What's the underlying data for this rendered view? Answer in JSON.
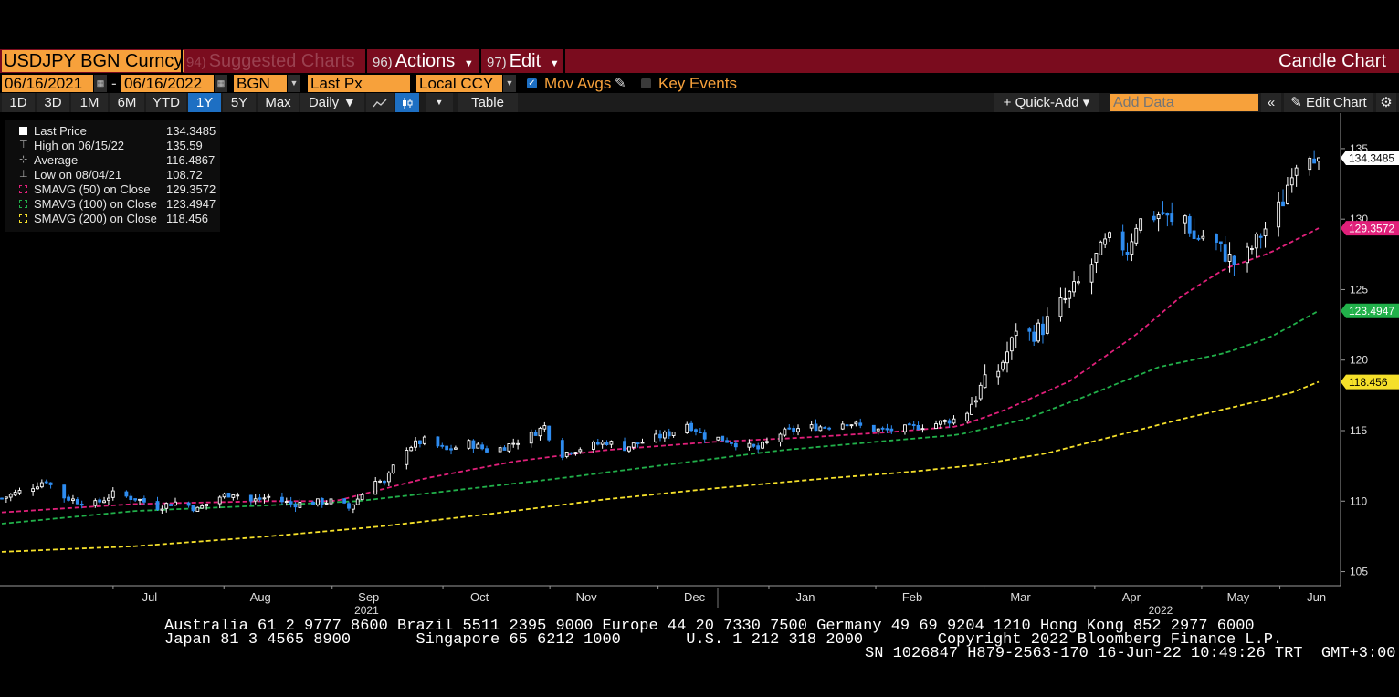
{
  "header": {
    "ticker": "USDJPY BGN Curncy",
    "suggested_num": "94)",
    "suggested": "Suggested Charts",
    "actions_num": "96)",
    "actions": "Actions",
    "edit_num": "97)",
    "edit": "Edit",
    "chart_type": "Candle Chart"
  },
  "controls": {
    "start_date": "06/16/2021",
    "date_sep": "-",
    "end_date": "06/16/2022",
    "source": "BGN",
    "field": "Last Px",
    "currency": "Local CCY",
    "mov_avgs": "Mov Avgs",
    "key_events": "Key Events"
  },
  "toolbar": {
    "ranges": [
      "1D",
      "3D",
      "1M",
      "6M",
      "YTD",
      "1Y",
      "5Y",
      "Max"
    ],
    "active_range": "1Y",
    "frequency": "Daily ▼",
    "table": "Table",
    "quick_add": "+ Quick-Add ▾",
    "add_data_placeholder": "Add Data",
    "edit_chart": "Edit Chart"
  },
  "legend": {
    "rows": [
      {
        "label": "Last Price",
        "value": "134.3485"
      },
      {
        "label": "High on 06/15/22",
        "value": "135.59"
      },
      {
        "label": "Average",
        "value": "116.4867"
      },
      {
        "label": "Low on 08/04/21",
        "value": "108.72"
      },
      {
        "label": "SMAVG (50)  on Close",
        "value": "129.3572"
      },
      {
        "label": "SMAVG (100)  on Close",
        "value": "123.4947"
      },
      {
        "label": "SMAVG (200)  on Close",
        "value": "118.456"
      }
    ]
  },
  "footer": {
    "line1": "Australia 61 2 9777 8600 Brazil 5511 2395 9000 Europe 44 20 7330 7500 Germany 49 69 9204 1210 Hong Kong 852 2977 6000",
    "line2": "Japan 81 3 4565 8900       Singapore 65 6212 1000       U.S. 1 212 318 2000        Copyright 2022 Bloomberg Finance L.P.",
    "line3": "SN 1026847 H879-2563-170 16-Jun-22 10:49:26 TRT  GMT+3:00"
  },
  "colors": {
    "sma50": "#e0207a",
    "sma100": "#21b04a",
    "sma200": "#f5e02a",
    "up": "#ffffff",
    "down": "#2e8cf0",
    "titlebar": "#7a0c1e",
    "accent": "#f7a13b"
  },
  "chart_data": {
    "type": "candlestick",
    "y_axis": {
      "min": 104,
      "max": 137,
      "ticks": [
        105,
        110,
        115,
        120,
        125,
        130,
        135
      ]
    },
    "x_month_labels": [
      {
        "label": "Jul",
        "t": 0.105
      },
      {
        "label": "Aug",
        "t": 0.19
      },
      {
        "label": "Sep",
        "t": 0.273
      },
      {
        "label": "Oct",
        "t": 0.358
      },
      {
        "label": "Nov",
        "t": 0.44
      },
      {
        "label": "Dec",
        "t": 0.523
      },
      {
        "label": "Jan",
        "t": 0.608
      },
      {
        "label": "Feb",
        "t": 0.69
      },
      {
        "label": "Mar",
        "t": 0.773
      },
      {
        "label": "Apr",
        "t": 0.858
      },
      {
        "label": "May",
        "t": 0.94
      },
      {
        "label": "Jun",
        "t": 1.0
      }
    ],
    "year_labels": [
      {
        "label": "2021",
        "t": 0.32
      },
      {
        "label": "2022",
        "t": 0.88
      }
    ],
    "last_value_tags": [
      {
        "name": "Last Price",
        "value": 134.3485,
        "display": "134.3485"
      },
      {
        "name": "SMAVG (50)",
        "value": 129.3572,
        "display": "129.3572"
      },
      {
        "name": "SMAVG (100)",
        "value": 123.4947,
        "display": "123.4947"
      },
      {
        "name": "SMAVG (200)",
        "value": 118.456,
        "display": "118.456"
      }
    ],
    "close_anchors": [
      [
        0,
        110.2
      ],
      [
        6,
        110.9
      ],
      [
        10,
        111.5
      ],
      [
        13,
        110.4
      ],
      [
        17,
        110.0
      ],
      [
        21,
        109.8
      ],
      [
        25,
        110.5
      ],
      [
        30,
        110.2
      ],
      [
        35,
        109.6
      ],
      [
        40,
        110.0
      ],
      [
        44,
        109.4
      ],
      [
        48,
        110.2
      ],
      [
        52,
        110.6
      ],
      [
        56,
        110.0
      ],
      [
        60,
        110.3
      ],
      [
        65,
        109.8
      ],
      [
        70,
        109.9
      ],
      [
        75,
        110.0
      ],
      [
        78,
        109.5
      ],
      [
        81,
        110.5
      ],
      [
        84,
        111.6
      ],
      [
        86,
        111.2
      ],
      [
        88,
        112.4
      ],
      [
        91,
        113.8
      ],
      [
        95,
        114.3
      ],
      [
        100,
        113.6
      ],
      [
        105,
        114.1
      ],
      [
        110,
        113.5
      ],
      [
        114,
        114.0
      ],
      [
        118,
        114.5
      ],
      [
        122,
        115.3
      ],
      [
        125,
        113.2
      ],
      [
        128,
        113.6
      ],
      [
        132,
        113.9
      ],
      [
        136,
        114.2
      ],
      [
        140,
        113.8
      ],
      [
        145,
        114.3
      ],
      [
        150,
        114.8
      ],
      [
        154,
        115.5
      ],
      [
        158,
        114.6
      ],
      [
        162,
        114.4
      ],
      [
        166,
        114.0
      ],
      [
        170,
        113.7
      ],
      [
        175,
        114.8
      ],
      [
        180,
        115.2
      ],
      [
        185,
        115.3
      ],
      [
        190,
        115.6
      ],
      [
        194,
        115.2
      ],
      [
        198,
        115.0
      ],
      [
        202,
        115.1
      ],
      [
        206,
        115.3
      ],
      [
        210,
        115.5
      ],
      [
        214,
        115.8
      ],
      [
        217,
        116.5
      ],
      [
        220,
        118.0
      ],
      [
        224,
        119.3
      ],
      [
        227,
        121.2
      ],
      [
        229,
        123.5
      ],
      [
        231,
        121.8
      ],
      [
        234,
        122.3
      ],
      [
        237,
        123.6
      ],
      [
        240,
        124.6
      ],
      [
        243,
        125.8
      ],
      [
        245,
        126.8
      ],
      [
        248,
        128.2
      ],
      [
        250,
        128.7
      ],
      [
        253,
        127.8
      ],
      [
        255,
        129.7
      ],
      [
        258,
        130.2
      ],
      [
        261,
        130.4
      ],
      [
        263,
        129.6
      ],
      [
        266,
        130.2
      ],
      [
        268,
        128.6
      ],
      [
        271,
        128.9
      ],
      [
        274,
        127.8
      ],
      [
        277,
        126.9
      ],
      [
        280,
        127.5
      ],
      [
        283,
        128.9
      ],
      [
        286,
        130.2
      ],
      [
        288,
        131.3
      ],
      [
        290,
        133.6
      ],
      [
        292,
        134.5
      ],
      [
        294,
        134.9
      ],
      [
        296,
        134.3485
      ]
    ],
    "sma50": [
      [
        0,
        109.2
      ],
      [
        30,
        109.8
      ],
      [
        60,
        110.0
      ],
      [
        75,
        110.0
      ],
      [
        95,
        111.6
      ],
      [
        115,
        112.8
      ],
      [
        135,
        113.6
      ],
      [
        160,
        114.2
      ],
      [
        180,
        114.5
      ],
      [
        200,
        114.9
      ],
      [
        215,
        115.3
      ],
      [
        225,
        116.4
      ],
      [
        240,
        118.5
      ],
      [
        255,
        121.8
      ],
      [
        265,
        124.5
      ],
      [
        275,
        126.5
      ],
      [
        285,
        127.6
      ],
      [
        296,
        129.3572
      ]
    ],
    "sma100": [
      [
        0,
        108.4
      ],
      [
        30,
        109.3
      ],
      [
        60,
        109.7
      ],
      [
        80,
        110.0
      ],
      [
        100,
        110.7
      ],
      [
        125,
        111.6
      ],
      [
        150,
        112.6
      ],
      [
        175,
        113.6
      ],
      [
        200,
        114.3
      ],
      [
        215,
        114.7
      ],
      [
        230,
        115.8
      ],
      [
        245,
        117.6
      ],
      [
        260,
        119.5
      ],
      [
        275,
        120.5
      ],
      [
        285,
        121.6
      ],
      [
        296,
        123.4947
      ]
    ],
    "sma200": [
      [
        0,
        106.4
      ],
      [
        30,
        106.8
      ],
      [
        60,
        107.5
      ],
      [
        85,
        108.2
      ],
      [
        110,
        109.1
      ],
      [
        135,
        110.1
      ],
      [
        160,
        110.9
      ],
      [
        185,
        111.6
      ],
      [
        205,
        112.1
      ],
      [
        220,
        112.6
      ],
      [
        235,
        113.4
      ],
      [
        250,
        114.6
      ],
      [
        265,
        115.8
      ],
      [
        280,
        116.9
      ],
      [
        290,
        117.7
      ],
      [
        296,
        118.456
      ]
    ]
  }
}
